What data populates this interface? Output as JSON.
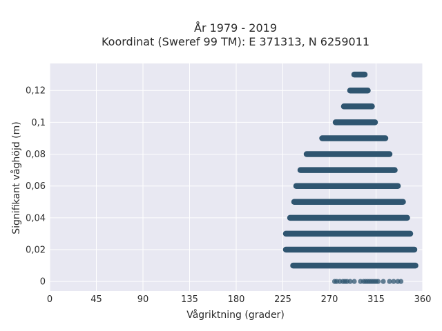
{
  "chart_data": {
    "type": "scatter",
    "title_line1": "År 1979 - 2019",
    "title_line2": "Koordinat (Sweref 99 TM): E 371313, N 6259011",
    "xlabel": "Vågriktning (grader)",
    "ylabel": "Signifikant våghöjd (m)",
    "xlim": [
      0,
      360
    ],
    "ylim": [
      -0.006,
      0.137
    ],
    "x_ticks": [
      0,
      45,
      90,
      135,
      180,
      225,
      270,
      315,
      360
    ],
    "y_ticks": [
      0,
      0.02,
      0.04,
      0.06,
      0.08,
      0.1,
      0.12
    ],
    "y_tick_labels": [
      "0",
      "0,02",
      "0,04",
      "0,06",
      "0,08",
      "0,1",
      "0,12"
    ],
    "grid": true,
    "marker_color": "#2f5570",
    "plot_background": "#e8e8f2",
    "series": [
      {
        "bands": [
          {
            "y": 0.13,
            "x_min": 294,
            "x_max": 304
          },
          {
            "y": 0.12,
            "x_min": 290,
            "x_max": 307
          },
          {
            "y": 0.11,
            "x_min": 284,
            "x_max": 311
          },
          {
            "y": 0.1,
            "x_min": 276,
            "x_max": 314
          },
          {
            "y": 0.09,
            "x_min": 263,
            "x_max": 324
          },
          {
            "y": 0.08,
            "x_min": 248,
            "x_max": 328
          },
          {
            "y": 0.07,
            "x_min": 242,
            "x_max": 333
          },
          {
            "y": 0.06,
            "x_min": 238,
            "x_max": 336
          },
          {
            "y": 0.05,
            "x_min": 236,
            "x_max": 341
          },
          {
            "y": 0.04,
            "x_min": 232,
            "x_max": 345
          },
          {
            "y": 0.03,
            "x_min": 228,
            "x_max": 348
          },
          {
            "y": 0.02,
            "x_min": 228,
            "x_max": 352
          },
          {
            "y": 0.01,
            "x_min": 235,
            "x_max": 353
          }
        ],
        "scattered_points": [
          {
            "x": 275,
            "y": 0
          },
          {
            "x": 277,
            "y": 0
          },
          {
            "x": 280,
            "y": 0
          },
          {
            "x": 283,
            "y": 0
          },
          {
            "x": 285,
            "y": 0
          },
          {
            "x": 287,
            "y": 0
          },
          {
            "x": 290,
            "y": 0
          },
          {
            "x": 294,
            "y": 0
          },
          {
            "x": 300,
            "y": 0
          },
          {
            "x": 303,
            "y": 0
          },
          {
            "x": 305,
            "y": 0
          },
          {
            "x": 307,
            "y": 0
          },
          {
            "x": 309,
            "y": 0
          },
          {
            "x": 311,
            "y": 0
          },
          {
            "x": 313,
            "y": 0
          },
          {
            "x": 315,
            "y": 0
          },
          {
            "x": 317,
            "y": 0
          },
          {
            "x": 322,
            "y": 0
          },
          {
            "x": 328,
            "y": 0
          },
          {
            "x": 332,
            "y": 0
          },
          {
            "x": 336,
            "y": 0
          },
          {
            "x": 339,
            "y": 0
          }
        ]
      }
    ]
  }
}
